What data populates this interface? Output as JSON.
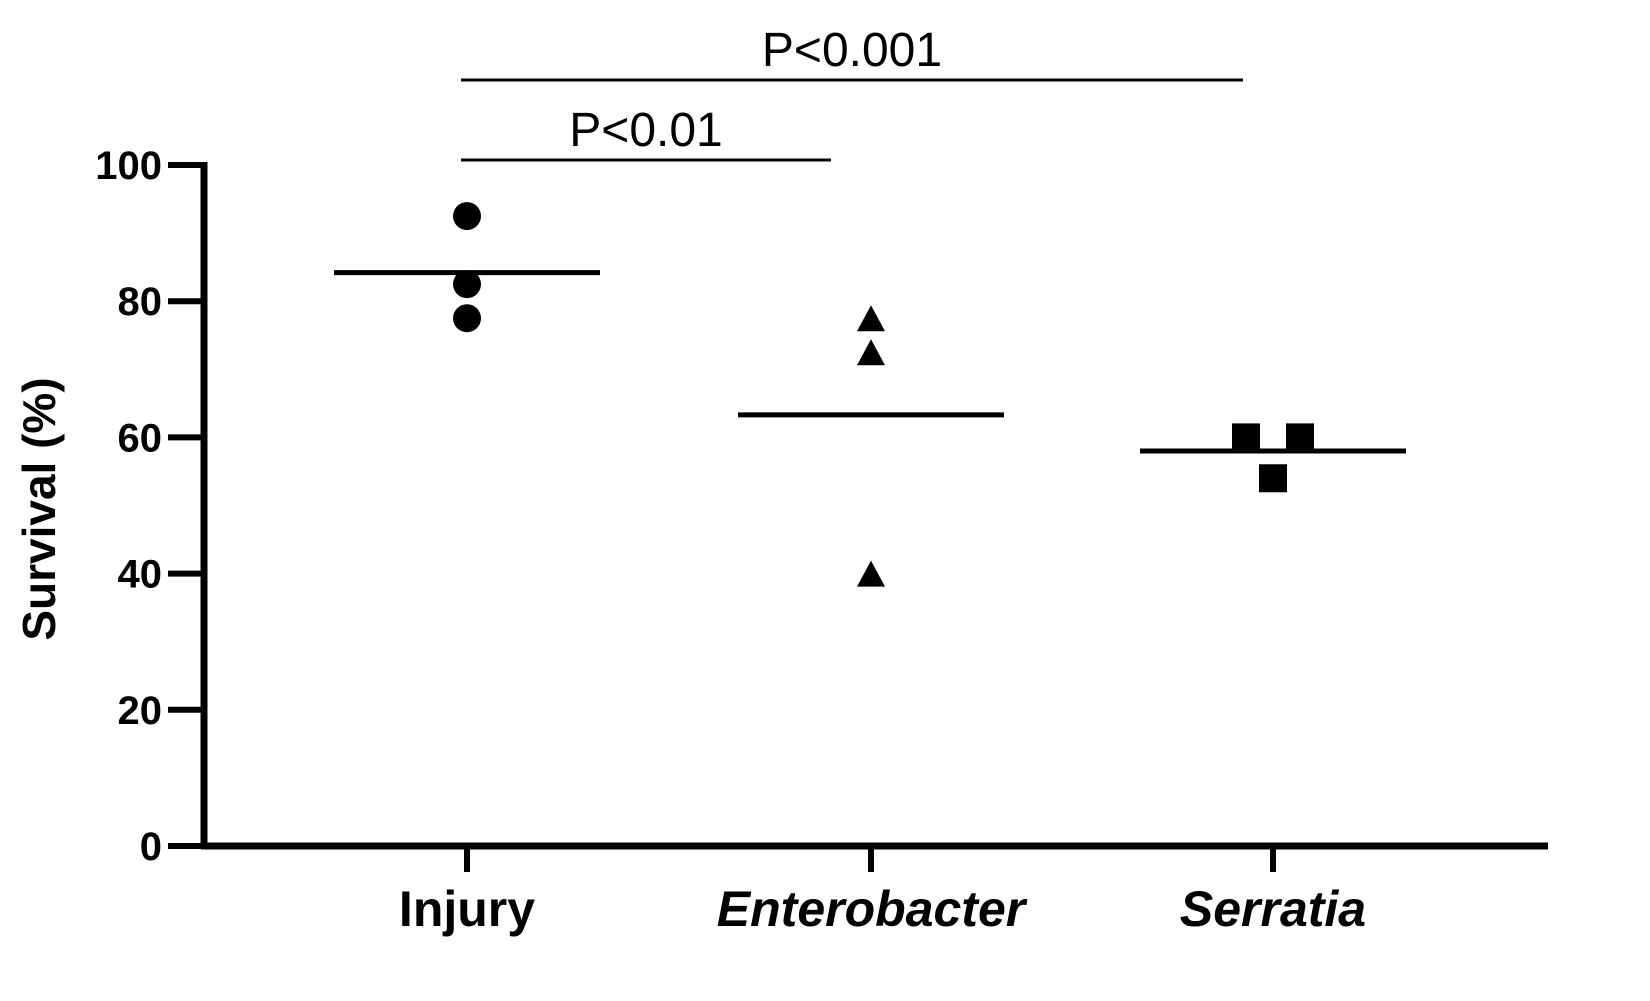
{
  "chart_data": {
    "type": "scatter",
    "title": "",
    "ylabel": "Survival (%)",
    "xlabel": "",
    "ylim": [
      0,
      100
    ],
    "yticks": [
      0,
      20,
      40,
      60,
      80,
      100
    ],
    "ytick_labels": [
      "0",
      "20",
      "40",
      "60",
      "80",
      "100"
    ],
    "grid": false,
    "categories": [
      "Injury",
      "Enterobacter",
      "Serratia"
    ],
    "category_italic": [
      false,
      true,
      true
    ],
    "series": [
      {
        "category": "Injury",
        "marker": "circle",
        "values": [
          92.5,
          82.5,
          77.5
        ],
        "mean": 84.2
      },
      {
        "category": "Enterobacter",
        "marker": "triangle",
        "values": [
          77.5,
          72.5,
          40
        ],
        "mean": 63.3
      },
      {
        "category": "Serratia",
        "marker": "square",
        "values": [
          60,
          60,
          54
        ],
        "mean": 58
      }
    ],
    "significance": [
      {
        "from": "Injury",
        "to": "Enterobacter",
        "label": "P<0.01"
      },
      {
        "from": "Injury",
        "to": "Serratia",
        "label": "P<0.001"
      }
    ],
    "colors": {
      "marks": "#000000",
      "background": "#ffffff"
    }
  }
}
